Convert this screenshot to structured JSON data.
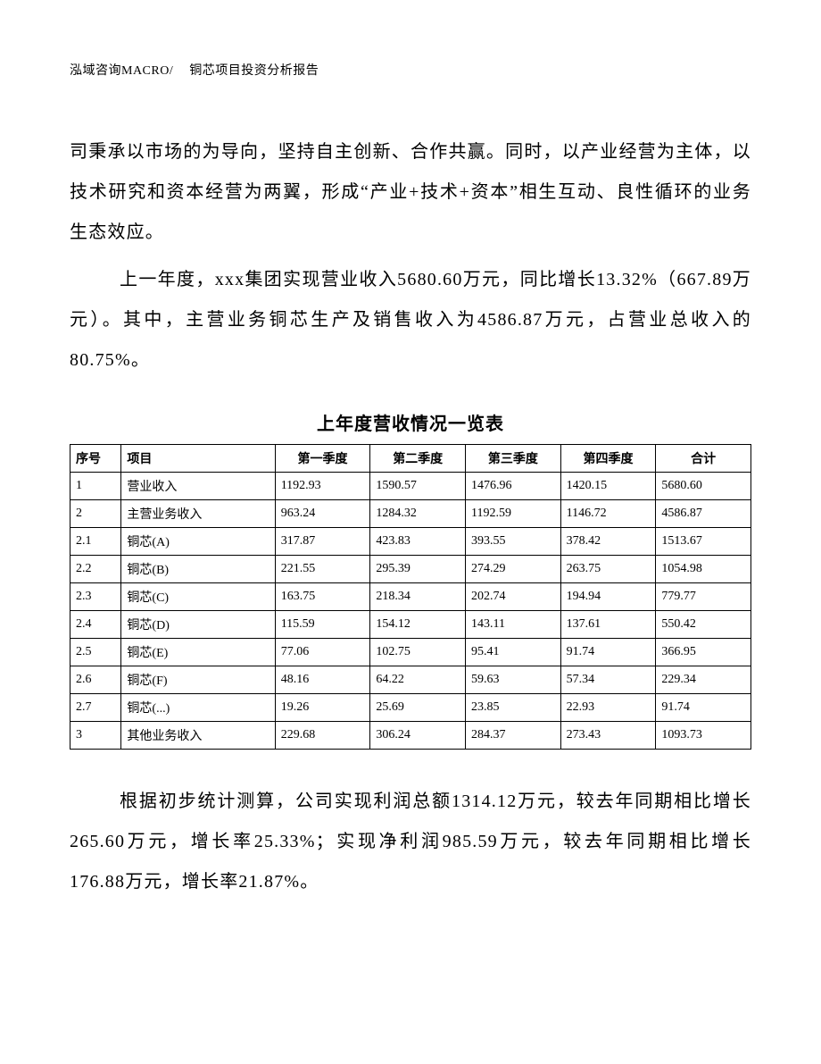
{
  "header": {
    "company": "泓域咨询MACRO/",
    "title": "铜芯项目投资分析报告"
  },
  "paragraph1": "司秉承以市场的为导向，坚持自主创新、合作共赢。同时，以产业经营为主体，以技术研究和资本经营为两翼，形成“产业+技术+资本”相生互动、良性循环的业务生态效应。",
  "paragraph2": "上一年度，xxx集团实现营业收入5680.60万元，同比增长13.32%（667.89万元）。其中，主营业务铜芯生产及销售收入为4586.87万元，占营业总收入的80.75%。",
  "tableTitle": "上年度营收情况一览表",
  "table": {
    "columns": [
      "序号",
      "项目",
      "第一季度",
      "第二季度",
      "第三季度",
      "第四季度",
      "合计"
    ],
    "rows": [
      [
        "1",
        "营业收入",
        "1192.93",
        "1590.57",
        "1476.96",
        "1420.15",
        "5680.60"
      ],
      [
        "2",
        "主营业务收入",
        "963.24",
        "1284.32",
        "1192.59",
        "1146.72",
        "4586.87"
      ],
      [
        "2.1",
        "铜芯(A)",
        "317.87",
        "423.83",
        "393.55",
        "378.42",
        "1513.67"
      ],
      [
        "2.2",
        "铜芯(B)",
        "221.55",
        "295.39",
        "274.29",
        "263.75",
        "1054.98"
      ],
      [
        "2.3",
        "铜芯(C)",
        "163.75",
        "218.34",
        "202.74",
        "194.94",
        "779.77"
      ],
      [
        "2.4",
        "铜芯(D)",
        "115.59",
        "154.12",
        "143.11",
        "137.61",
        "550.42"
      ],
      [
        "2.5",
        "铜芯(E)",
        "77.06",
        "102.75",
        "95.41",
        "91.74",
        "366.95"
      ],
      [
        "2.6",
        "铜芯(F)",
        "48.16",
        "64.22",
        "59.63",
        "57.34",
        "229.34"
      ],
      [
        "2.7",
        "铜芯(...)",
        "19.26",
        "25.69",
        "23.85",
        "22.93",
        "91.74"
      ],
      [
        "3",
        "其他业务收入",
        "229.68",
        "306.24",
        "284.37",
        "273.43",
        "1093.73"
      ]
    ]
  },
  "paragraph3": "根据初步统计测算，公司实现利润总额1314.12万元，较去年同期相比增长265.60万元，增长率25.33%；实现净利润985.59万元，较去年同期相比增长176.88万元，增长率21.87%。"
}
